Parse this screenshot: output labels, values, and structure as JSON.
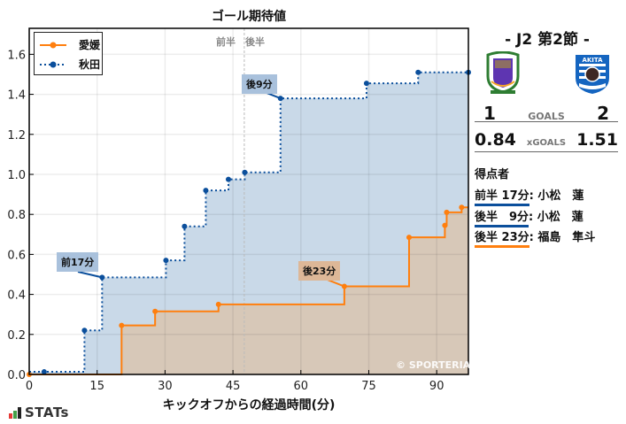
{
  "chart_data": {
    "type": "line",
    "subtype": "step-area",
    "title": "ゴール期待値",
    "xlabel": "キックオフからの経過時間(分)",
    "ylabel": "",
    "xlim": [
      0,
      97
    ],
    "ylim": [
      0,
      1.73
    ],
    "xticks": [
      0,
      15,
      30,
      45,
      60,
      75,
      90
    ],
    "yticks": [
      0.0,
      0.2,
      0.4,
      0.6,
      0.8,
      1.0,
      1.2,
      1.4,
      1.6
    ],
    "grid": true,
    "legend_position": "upper left",
    "half_time_marker": {
      "x": 47.5,
      "left_label": "前半",
      "right_label": "後半"
    },
    "series": [
      {
        "name": "愛媛",
        "color": "#ff7f0e",
        "fill": "#d7c8b8",
        "line_style": "solid",
        "x": [
          0,
          20.4,
          27.8,
          41.8,
          69.6,
          83.9,
          91.8,
          92.2,
          95.5,
          97
        ],
        "y": [
          0.0,
          0.245,
          0.315,
          0.35,
          0.44,
          0.685,
          0.745,
          0.81,
          0.835,
          0.835
        ]
      },
      {
        "name": "秋田",
        "color": "#0b4f9c",
        "fill": "#c9d9e8",
        "line_style": "dotted",
        "x": [
          3.3,
          12.2,
          16.1,
          30.2,
          34.3,
          39.0,
          44.0,
          47.6,
          55.5,
          74.5,
          85.9,
          97
        ],
        "y": [
          0.013,
          0.22,
          0.485,
          0.57,
          0.74,
          0.92,
          0.975,
          1.01,
          1.38,
          1.455,
          1.51,
          1.51
        ]
      }
    ],
    "annotations": [
      {
        "text": "前17分",
        "x": 16.1,
        "y": 0.485,
        "team": "秋田"
      },
      {
        "text": "後9分",
        "x": 55.5,
        "y": 1.38,
        "team": "秋田"
      },
      {
        "text": "後23分",
        "x": 69.6,
        "y": 0.44,
        "team": "愛媛"
      }
    ],
    "watermark": "© SPORTERIA"
  },
  "match": {
    "title": "- J2 第2節 -",
    "home": {
      "name": "愛媛",
      "goals": "1",
      "xgoals": "0.84",
      "crest": "ehime-fc-crest"
    },
    "away": {
      "name": "秋田",
      "goals": "2",
      "xgoals": "1.51",
      "crest": "blaublitz-akita-crest",
      "crest_text_top": "AKITA",
      "crest_text_bottom": "BLAUBLITZ"
    },
    "goals_label": "GOALS",
    "xgoals_label": "xGOALS"
  },
  "scorers": {
    "title": "得点者",
    "items": [
      {
        "time": "前半 17分",
        "sep": ":",
        "name": " 小松　蓮",
        "color": "#0b4f9c"
      },
      {
        "time": "後半　9分",
        "sep": ":",
        "name": " 小松　蓮",
        "color": "#0b4f9c"
      },
      {
        "time": "後半 23分",
        "sep": ":",
        "name": " 福島　隼斗",
        "color": "#ff7f0e"
      }
    ]
  },
  "footer": {
    "brand": "STATs"
  }
}
